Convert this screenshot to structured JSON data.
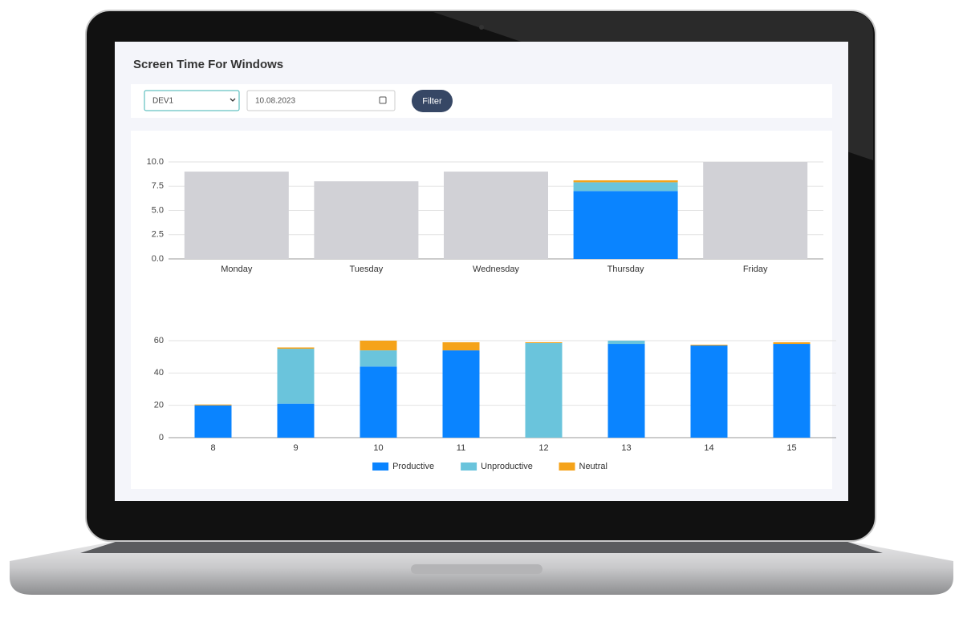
{
  "header": {
    "title": "Screen Time For Windows"
  },
  "filters": {
    "device": "DEV1",
    "date": "10.08.2023",
    "button": "Filter"
  },
  "chart_data": [
    {
      "type": "bar",
      "stacked": true,
      "grid": true,
      "categories": [
        "Monday",
        "Tuesday",
        "Wednesday",
        "Thursday",
        "Friday"
      ],
      "series": [
        {
          "color": "#d1d1d6",
          "values": [
            9,
            8,
            9,
            null,
            10
          ]
        },
        {
          "color": "#0a84ff",
          "values": [
            null,
            null,
            null,
            7,
            null
          ]
        },
        {
          "color": "#6ac4dc",
          "values": [
            null,
            null,
            null,
            0.9,
            null
          ]
        },
        {
          "color": "#f5a31a",
          "values": [
            null,
            null,
            null,
            0.2,
            null
          ]
        }
      ],
      "ylim": [
        0,
        10
      ],
      "yticks": [
        {
          "value": 0,
          "label": "0.0"
        },
        2.5,
        {
          "value": 5,
          "label": "5.0"
        },
        7.5,
        {
          "value": 10,
          "label": "10.0"
        }
      ]
    },
    {
      "type": "bar",
      "stacked": true,
      "grid": true,
      "legend": "bottom",
      "categories": [
        "8",
        "9",
        "10",
        "11",
        "12",
        "13",
        "14",
        "15"
      ],
      "series": [
        {
          "name": "Productive",
          "color": "#0a84ff",
          "values": [
            20,
            21,
            44,
            54,
            0,
            58,
            57,
            58
          ]
        },
        {
          "name": "Unproductive",
          "color": "#6ac4dc",
          "values": [
            0,
            34,
            10,
            0,
            58.5,
            2,
            0,
            0
          ]
        },
        {
          "name": "Neutral",
          "color": "#f5a31a",
          "values": [
            0.5,
            0.8,
            6,
            5,
            0.5,
            0,
            0.5,
            1
          ]
        }
      ],
      "ylim": [
        0,
        60
      ],
      "yticks": [
        0,
        20,
        40,
        60
      ]
    }
  ]
}
